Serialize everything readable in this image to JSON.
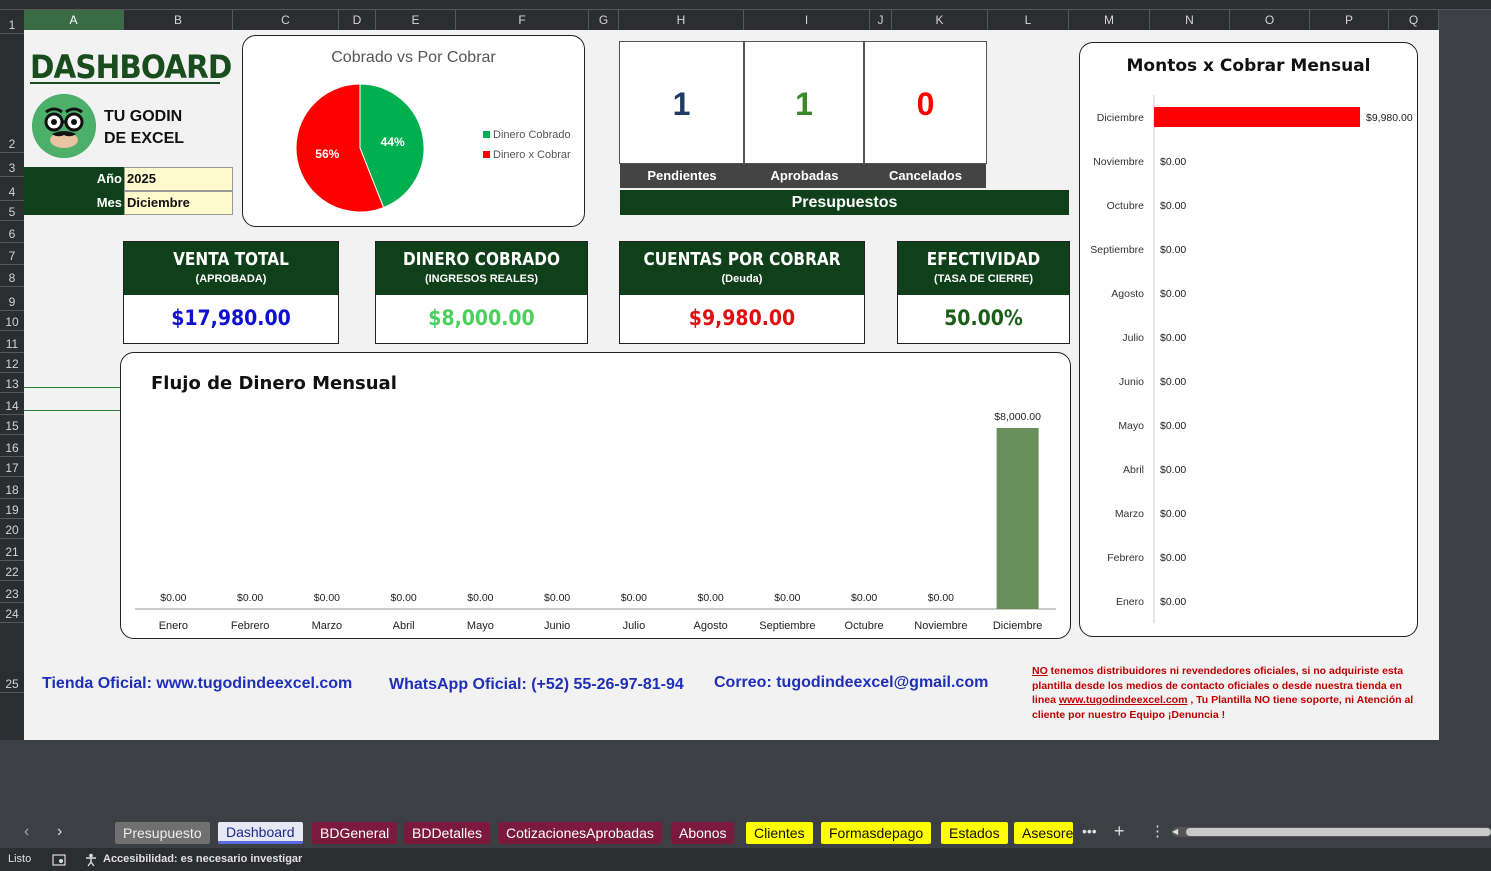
{
  "columns": [
    "A",
    "B",
    "C",
    "D",
    "E",
    "F",
    "G",
    "H",
    "I",
    "J",
    "K",
    "L",
    "M",
    "N",
    "O",
    "P",
    "Q"
  ],
  "rows": [
    "1",
    "2",
    "3",
    "4",
    "5",
    "6",
    "7",
    "8",
    "9",
    "10",
    "11",
    "12",
    "13",
    "14",
    "15",
    "16",
    "17",
    "18",
    "19",
    "20",
    "21",
    "22",
    "23",
    "24",
    "25"
  ],
  "dashboard": {
    "title": "DASHBOARD",
    "logo_text_line1": "TU GODIN",
    "logo_text_line2": "DE EXCEL",
    "year_label": "Año",
    "year_value": "2025",
    "month_label": "Mes",
    "month_value": "Diciembre"
  },
  "pie_chart": {
    "chart_data": {
      "type": "pie",
      "title": "Cobrado vs Por Cobrar",
      "slices": [
        {
          "label": "Dinero Cobrado",
          "value": 44,
          "display": "44%",
          "color": "#00b050"
        },
        {
          "label": "Dinero x Cobrar",
          "value": 56,
          "display": "56%",
          "color": "#ff0000"
        }
      ],
      "legend_position": "right"
    }
  },
  "counters": [
    {
      "value": "1",
      "label": "Pendientes",
      "color": "#1f3b63"
    },
    {
      "value": "1",
      "label": "Aprobadas",
      "color": "#3a8a2a"
    },
    {
      "value": "0",
      "label": "Cancelados",
      "color": "#ff0000"
    }
  ],
  "counters_footer": "Presupuestos",
  "kpis": [
    {
      "title": "VENTA TOTAL",
      "subtitle": "(APROBADA)",
      "value": "$17,980.00",
      "color": "#1010d0"
    },
    {
      "title": "DINERO COBRADO",
      "subtitle": "(INGRESOS REALES)",
      "value": "$8,000.00",
      "color": "#4ccf5c"
    },
    {
      "title": "CUENTAS POR COBRAR",
      "subtitle": "(Deuda)",
      "value": "$9,980.00",
      "color": "#e01010"
    },
    {
      "title": "EFECTIVIDAD",
      "subtitle": "(TASA DE CIERRE)",
      "value": "50.00%",
      "color": "#1a5e1a"
    }
  ],
  "bar_chart": {
    "chart_data": {
      "type": "bar",
      "title": "Flujo de Dinero Mensual",
      "categories": [
        "Enero",
        "Febrero",
        "Marzo",
        "Abril",
        "Mayo",
        "Junio",
        "Julio",
        "Agosto",
        "Septiembre",
        "Octubre",
        "Noviembre",
        "Diciembre"
      ],
      "values": [
        0,
        0,
        0,
        0,
        0,
        0,
        0,
        0,
        0,
        0,
        0,
        8000
      ],
      "labels": [
        "$0.00",
        "$0.00",
        "$0.00",
        "$0.00",
        "$0.00",
        "$0.00",
        "$0.00",
        "$0.00",
        "$0.00",
        "$0.00",
        "$0.00",
        "$8,000.00"
      ],
      "ylim": [
        0,
        8000
      ],
      "color": "#6a8f5a"
    }
  },
  "hbar_chart": {
    "chart_data": {
      "type": "bar",
      "orientation": "horizontal",
      "title": "Montos x Cobrar Mensual",
      "categories": [
        "Diciembre",
        "Noviembre",
        "Octubre",
        "Septiembre",
        "Agosto",
        "Julio",
        "Junio",
        "Mayo",
        "Abril",
        "Marzo",
        "Febrero",
        "Enero"
      ],
      "values": [
        9980,
        0,
        0,
        0,
        0,
        0,
        0,
        0,
        0,
        0,
        0,
        0
      ],
      "labels": [
        "$9,980.00",
        "$0.00",
        "$0.00",
        "$0.00",
        "$0.00",
        "$0.00",
        "$0.00",
        "$0.00",
        "$0.00",
        "$0.00",
        "$0.00",
        "$0.00"
      ],
      "xlim": [
        0,
        9980
      ],
      "color": "#ff0000"
    }
  },
  "footer": {
    "store": "Tienda Oficial: www.tugodindeexcel.com",
    "whatsapp": "WhatsApp Oficial: (+52) 55-26-97-81-94",
    "email": "Correo: tugodindeexcel@gmail.com",
    "disclaimer_no": "NO",
    "disclaimer_part1": " tenemos distribuidores ni revendedores oficiales, si no adquiriste esta plantilla desde los medios de contacto oficiales o desde nuestra tienda en linea ",
    "disclaimer_link": "www.tugodindeexcel.com",
    "disclaimer_part2": " , Tu Plantilla NO tiene soporte, ni Atención al cliente por nuestro Equipo ¡Denuncia !"
  },
  "tabs": [
    {
      "label": "Presupuesto",
      "style": "gray"
    },
    {
      "label": "Dashboard",
      "style": "active"
    },
    {
      "label": "BDGeneral",
      "style": "maroon"
    },
    {
      "label": "BDDetalles",
      "style": "maroon"
    },
    {
      "label": "CotizacionesAprobadas",
      "style": "maroon"
    },
    {
      "label": "Abonos",
      "style": "maroon"
    },
    {
      "label": "Clientes",
      "style": "yellow"
    },
    {
      "label": "Formasdepago",
      "style": "yellow"
    },
    {
      "label": "Estados",
      "style": "yellow"
    },
    {
      "label": "Asesores",
      "style": "yellow"
    }
  ],
  "status": {
    "ready": "Listo",
    "accessibility": "Accesibilidad: es necesario investigar"
  },
  "icons": [
    "nav-prev-icon",
    "nav-next-icon",
    "more-tabs-icon",
    "add-sheet-icon",
    "tab-options-icon",
    "macro-record-icon",
    "accessibility-icon"
  ]
}
